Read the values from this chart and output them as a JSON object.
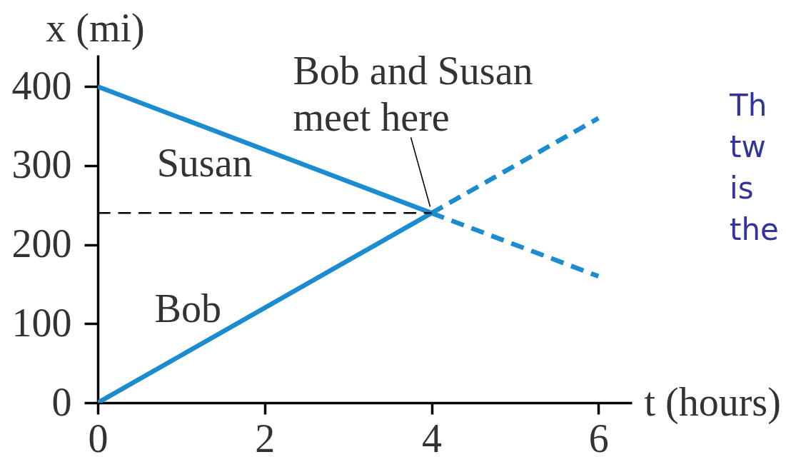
{
  "chart_data": {
    "type": "line",
    "xlabel": "t (hours)",
    "ylabel": "x (mi)",
    "xlim": [
      0,
      6.4
    ],
    "ylim": [
      0,
      440
    ],
    "xticks": [
      0,
      2,
      4,
      6
    ],
    "yticks": [
      0,
      100,
      200,
      300,
      400
    ],
    "grid": false,
    "series": [
      {
        "name": "Bob",
        "color": "#1b8ccf",
        "line_style": "solid",
        "x": [
          0,
          4
        ],
        "values": [
          0,
          240
        ]
      },
      {
        "color": "#1b8ccf",
        "line_style": "dashed",
        "x": [
          4,
          6
        ],
        "values": [
          240,
          360
        ]
      },
      {
        "name": "Susan",
        "color": "#1b8ccf",
        "line_style": "solid",
        "x": [
          0,
          4
        ],
        "values": [
          400,
          240
        ]
      },
      {
        "color": "#1b8ccf",
        "line_style": "dashed",
        "x": [
          4,
          6
        ],
        "values": [
          240,
          160
        ]
      },
      {
        "color": "#000000",
        "line_style": "dashed",
        "x": [
          0,
          4
        ],
        "values": [
          240,
          240
        ]
      }
    ],
    "annotations": [
      {
        "text": "Bob and Susan\nmeet here",
        "x": 4,
        "y": 240
      },
      "Th\ntw\nis\nthe"
    ]
  }
}
